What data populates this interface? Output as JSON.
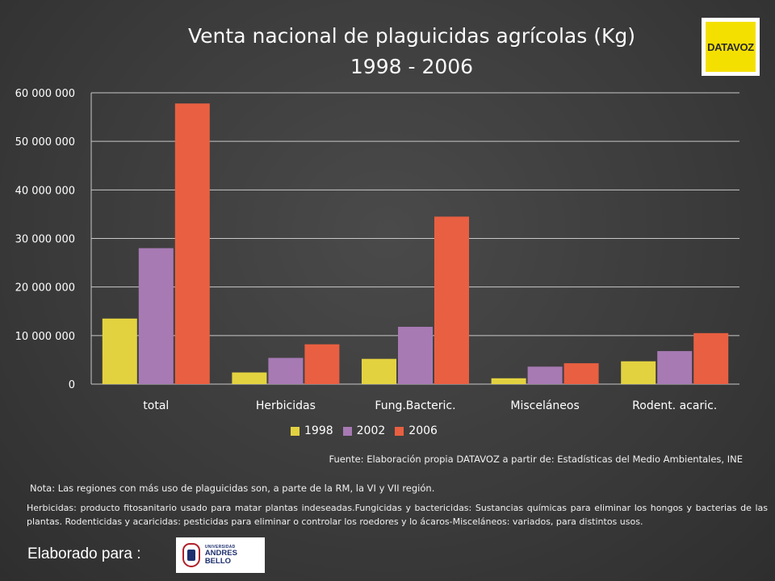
{
  "logos": {
    "datavoz": "DATAVOZ",
    "universidad_small": "UNIVERSIDAD",
    "universidad_name": "ANDRES BELLO"
  },
  "source": "Fuente: Elaboración propia DATAVOZ a partir de: Estadísticas  del Medio Ambientales, INE",
  "nota": "Nota: Las regiones con más uso de plaguicidas son, a parte de la RM, la VI y VII región.",
  "description": "Herbicidas:  producto fitosanitario usado para matar plantas indeseadas.Fungicidas y bactericidas: Sustancias químicas para eliminar los hongos y bacterias de las plantas. Rodenticidas y acaricidas: pesticidas para eliminar o controlar los roedores y lo ácaros-Misceláneos: variados, para distintos usos.",
  "footer": {
    "elaborado": "Elaborado para :"
  },
  "chart_data": {
    "type": "bar",
    "title": "Venta nacional de plaguicidas agrícolas (Kg)",
    "subtitle": "1998 - 2006",
    "categories": [
      "total",
      "Herbicidas",
      "Fung.Bacteric.",
      "Misceláneos",
      "Rodent. acaric."
    ],
    "series": [
      {
        "name": "1998",
        "color": "#e3d240",
        "values": [
          13500000,
          2400000,
          5200000,
          1200000,
          4700000
        ]
      },
      {
        "name": "2002",
        "color": "#a77ab4",
        "values": [
          28000000,
          5400000,
          11800000,
          3600000,
          6800000
        ]
      },
      {
        "name": "2006",
        "color": "#e95f41",
        "values": [
          57800000,
          8200000,
          34500000,
          4300000,
          10500000
        ]
      }
    ],
    "ylim": [
      0,
      60000000
    ],
    "yticks": [
      0,
      10000000,
      20000000,
      30000000,
      40000000,
      50000000,
      60000000
    ],
    "ytick_labels": [
      "0",
      "10 000 000",
      "20 000 000",
      "30 000 000",
      "40 000 000",
      "50 000 000",
      "60 000 000"
    ],
    "grid": true,
    "legend_position": "bottom"
  }
}
